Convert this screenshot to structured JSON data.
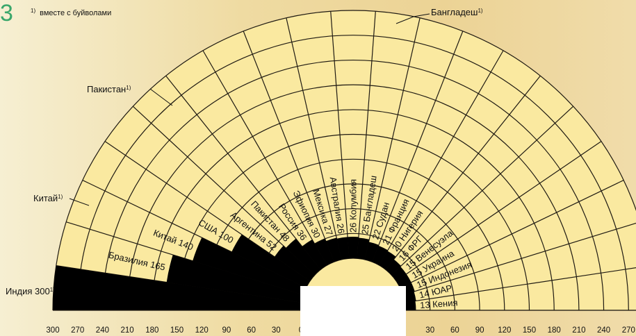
{
  "slide_number": "3",
  "footnote": {
    "marker": "1)",
    "text": "вместе с буйволами"
  },
  "chart_data": {
    "type": "bar",
    "subtype": "radial-semicircular",
    "axis_unit": "",
    "radius_max": 300,
    "grid_interval": 30,
    "tick_labels_left": [
      "300",
      "270",
      "240",
      "210",
      "180",
      "150",
      "120",
      "90",
      "60",
      "30",
      "0"
    ],
    "tick_labels_right": [
      "30",
      "60",
      "90",
      "120",
      "150",
      "180",
      "210",
      "240",
      "270",
      "300"
    ],
    "categories": [
      "Индия",
      "Бразилия",
      "Китай",
      "США",
      "Аргентина",
      "Пакистан",
      "Россия",
      "Эфиопия",
      "Мексика",
      "Австралия",
      "Колумбия",
      "Бангладеш",
      "Судан",
      "Франция",
      "Нигерия",
      "ФРГ",
      "Венесуэла",
      "Украина",
      "Индонезия",
      "ЮАР",
      "Кения"
    ],
    "values": [
      300,
      165,
      140,
      100,
      52,
      48,
      36,
      30,
      27,
      26,
      26,
      25,
      22,
      21,
      20,
      16,
      15,
      15,
      15,
      14,
      13
    ],
    "footnoted": [
      "Индия"
    ],
    "outside_labels": [
      {
        "text": "Индия 300",
        "sup": "1)"
      },
      {
        "text": "Китай",
        "sup": "1)"
      },
      {
        "text": "Пакистан",
        "sup": "1)"
      },
      {
        "text": "Бангладеш",
        "sup": "1)"
      }
    ],
    "bar_color": "#000000",
    "fill_color": "#fae9a0",
    "grid": true
  }
}
